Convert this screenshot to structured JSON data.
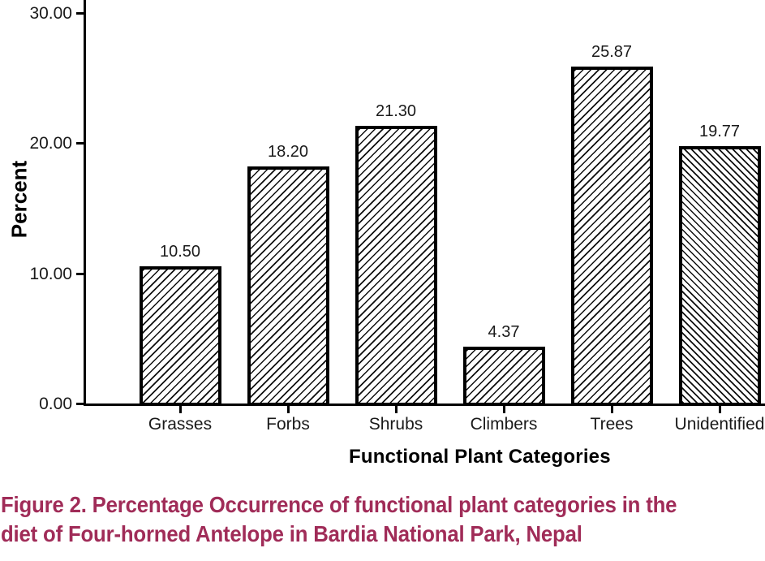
{
  "figure": {
    "caption_line1": "Figure 2. Percentage Occurrence of functional plant categories in the",
    "caption_line2": "diet of Four-horned Antelope in Bardia National Park, Nepal",
    "caption_color": "#A02C58"
  },
  "chart_data": {
    "type": "bar",
    "title": "",
    "xlabel": "Functional Plant Categories",
    "ylabel": "Percent",
    "categories": [
      "Grasses",
      "Forbs",
      "Shrubs",
      "Climbers",
      "Trees",
      "Unidentified"
    ],
    "values": [
      10.5,
      18.2,
      21.3,
      4.37,
      25.87,
      19.77
    ],
    "value_labels": [
      "10.50",
      "18.20",
      "21.30",
      "4.37",
      "25.87",
      "19.77"
    ],
    "hatch_directions": [
      "/",
      "/",
      "/",
      "/",
      "/",
      "\\"
    ],
    "y_ticks": [
      {
        "value": 0,
        "label": "0.00"
      },
      {
        "value": 10,
        "label": "10.00"
      },
      {
        "value": 20,
        "label": "20.00"
      },
      {
        "value": 30,
        "label": "30.00"
      }
    ],
    "ylim": [
      0,
      30
    ],
    "grid": false,
    "legend": "none",
    "bar_fill": "hatch-pattern",
    "bar_border_color": "#000000",
    "axis_color": "#000000"
  }
}
